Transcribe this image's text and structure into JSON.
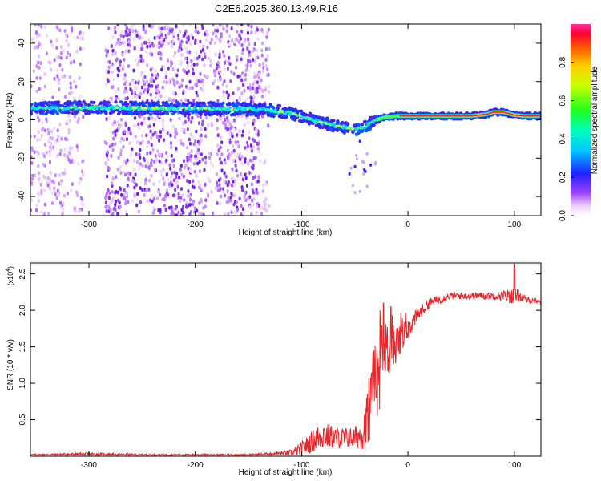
{
  "title": "C2E6.2025.360.13.49.R16",
  "colors": {
    "snr_line": "#e8262a",
    "spectrum_point_low": "#b070ff",
    "axis": "#000000"
  },
  "chart_data": [
    {
      "type": "heatmap",
      "name": "spectrogram",
      "xlabel": "Height of straight line (km)",
      "ylabel": "Frequency (Hz)",
      "xlim": [
        -355,
        125
      ],
      "ylim": [
        -50,
        50
      ],
      "x_ticks": [
        -300,
        -200,
        -100,
        0,
        100
      ],
      "x_tick_labels": [
        "-300",
        "-200",
        "-100",
        "0",
        "100"
      ],
      "y_ticks": [
        -40,
        -20,
        0,
        20,
        40
      ],
      "y_tick_labels": [
        "-40",
        "-20",
        "0",
        "20",
        "40"
      ],
      "ridge": {
        "description_x": "ridge centre frequency (Hz) versus height (km)",
        "x": [
          -355,
          -300,
          -250,
          -200,
          -150,
          -130,
          -110,
          -95,
          -80,
          -65,
          -55,
          -45,
          -38,
          -30,
          -20,
          -10,
          0,
          20,
          60,
          75,
          80,
          90,
          100,
          110,
          125
        ],
        "freq": [
          6,
          6.5,
          6,
          6,
          5.5,
          5,
          3.5,
          1,
          -1.5,
          -3.5,
          -4.5,
          -5,
          -2.5,
          0,
          1.5,
          2,
          2,
          2,
          2,
          3,
          4,
          4,
          2.5,
          2,
          2
        ]
      },
      "noise_x_range": [
        -355,
        -130
      ],
      "noise_gap_x_range": [
        -305,
        -285
      ],
      "colorbar": {
        "label": "Normalized spectral amplitude",
        "range": [
          0,
          1
        ],
        "ticks": [
          0.0,
          0.2,
          0.4,
          0.6,
          0.8
        ],
        "tick_labels": [
          "0.0",
          "0.2",
          "0.4",
          "0.6",
          "0.8"
        ]
      }
    },
    {
      "type": "line",
      "name": "snr",
      "xlabel": "Height of straight line (km)",
      "ylabel": "SNR (10 * v/v)",
      "y_multiplier_label": "(x10",
      "y_multiplier_exp": "4",
      "y_multiplier_close": ")",
      "xlim": [
        -355,
        125
      ],
      "ylim": [
        0,
        2.65
      ],
      "x_ticks": [
        -300,
        -200,
        -100,
        0,
        100
      ],
      "x_tick_labels": [
        "-300",
        "-200",
        "-100",
        "0",
        "100"
      ],
      "y_ticks": [
        0.5,
        1.0,
        1.5,
        2.0,
        2.5
      ],
      "y_tick_labels": [
        "0.5",
        "1.0",
        "1.5",
        "2.0",
        "2.5"
      ],
      "series": [
        {
          "name": "SNR",
          "x": [
            -355,
            -300,
            -250,
            -200,
            -150,
            -130,
            -110,
            -100,
            -90,
            -80,
            -70,
            -60,
            -50,
            -45,
            -40,
            -35,
            -30,
            -25,
            -20,
            -15,
            -10,
            -5,
            0,
            10,
            20,
            30,
            40,
            50,
            60,
            70,
            80,
            90,
            95,
            100,
            105,
            110,
            125
          ],
          "y": [
            0.02,
            0.03,
            0.02,
            0.02,
            0.02,
            0.03,
            0.05,
            0.1,
            0.2,
            0.3,
            0.25,
            0.25,
            0.25,
            0.3,
            0.4,
            0.7,
            1.1,
            1.35,
            1.45,
            1.5,
            1.55,
            1.6,
            1.75,
            1.95,
            2.1,
            2.15,
            2.2,
            2.2,
            2.2,
            2.2,
            2.2,
            2.2,
            2.2,
            2.2,
            2.2,
            2.15,
            2.12
          ],
          "noise": [
            0.01,
            0.02,
            0.01,
            0.01,
            0.01,
            0.02,
            0.04,
            0.1,
            0.15,
            0.2,
            0.15,
            0.15,
            0.15,
            0.2,
            0.35,
            0.6,
            0.6,
            0.5,
            0.4,
            0.3,
            0.25,
            0.2,
            0.15,
            0.1,
            0.07,
            0.06,
            0.05,
            0.05,
            0.05,
            0.05,
            0.05,
            0.08,
            0.1,
            0.12,
            0.08,
            0.05,
            0.03
          ],
          "peaks": [
            {
              "x": -23,
              "y": 2.1
            },
            {
              "x": -16,
              "y": 2.05
            },
            {
              "x": 100,
              "y": 2.63
            }
          ]
        }
      ]
    }
  ]
}
